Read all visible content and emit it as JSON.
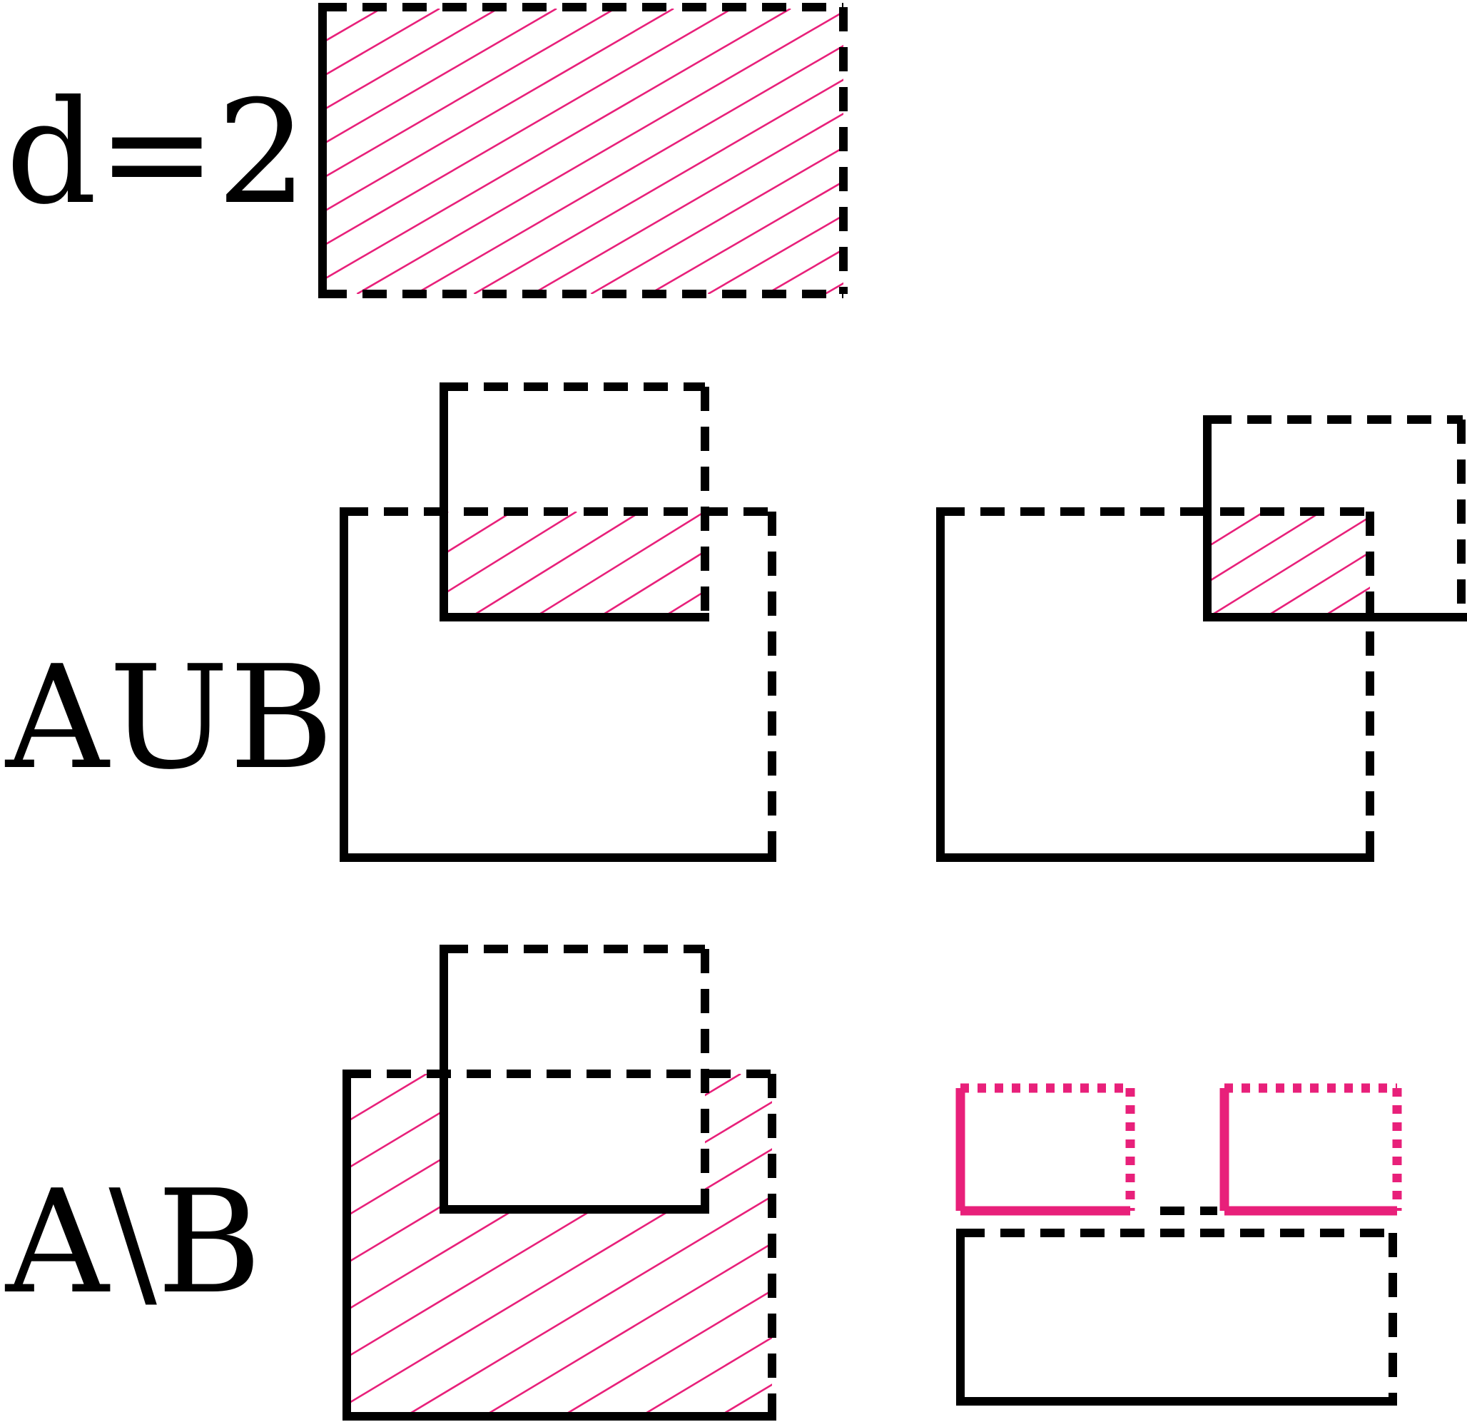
{
  "rows": [
    {
      "id": "row-dimension",
      "label": "d=2"
    },
    {
      "id": "row-union",
      "label": "AUB"
    },
    {
      "id": "row-difference",
      "label": "A\\B"
    }
  ],
  "colors": {
    "outline": "#000000",
    "accent": "#e8207a",
    "background": "#ffffff"
  }
}
